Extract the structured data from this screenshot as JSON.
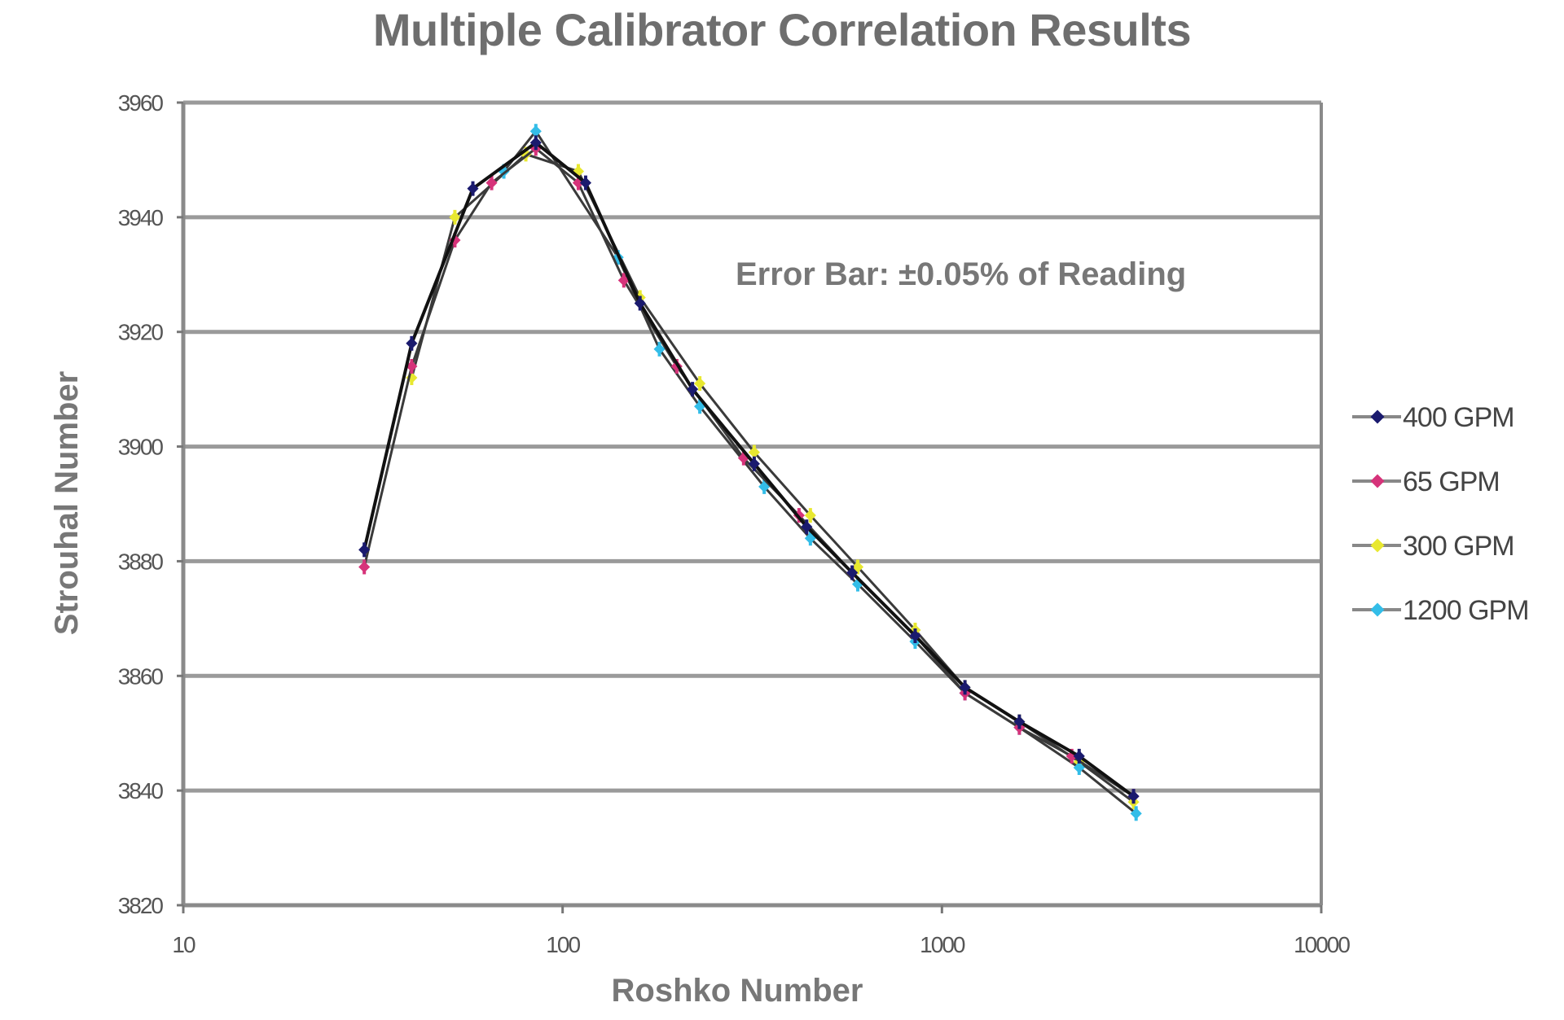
{
  "chart_data": {
    "type": "line",
    "title": "Multiple Calibrator Correlation Results",
    "xlabel": "Roshko Number",
    "ylabel": "Strouhal Number",
    "xscale": "log",
    "xlim": [
      10,
      10000
    ],
    "ylim": [
      3820,
      3960
    ],
    "x_ticks": [
      "10",
      "100",
      "1000",
      "10000"
    ],
    "y_ticks": [
      "3960",
      "3940",
      "3920",
      "3900",
      "3880",
      "3860",
      "3840",
      "3820"
    ],
    "grid": "horizontal",
    "legend_position": "right",
    "annotation": "Error Bar: ±0.05% of Reading",
    "series": [
      {
        "name": "400 GPM",
        "color": "#1a1a6e",
        "marker": "diamond",
        "points": [
          [
            30,
            3882
          ],
          [
            40,
            3918
          ],
          [
            58,
            3945
          ],
          [
            85,
            3953
          ],
          [
            115,
            3946
          ],
          [
            160,
            3925
          ],
          [
            220,
            3910
          ],
          [
            320,
            3897
          ],
          [
            440,
            3886
          ],
          [
            580,
            3878
          ],
          [
            850,
            3867
          ],
          [
            1150,
            3858
          ],
          [
            1600,
            3852
          ],
          [
            2300,
            3846
          ],
          [
            3200,
            3839
          ]
        ]
      },
      {
        "name": "65 GPM",
        "color": "#d6337a",
        "marker": "square",
        "points": [
          [
            30,
            3879
          ],
          [
            40,
            3914
          ],
          [
            52,
            3936
          ],
          [
            65,
            3946
          ],
          [
            85,
            3952
          ],
          [
            110,
            3946
          ],
          [
            145,
            3929
          ],
          [
            200,
            3914
          ],
          [
            300,
            3898
          ],
          [
            420,
            3888
          ],
          [
            580,
            3878
          ],
          [
            850,
            3867
          ],
          [
            1150,
            3857
          ],
          [
            1600,
            3851
          ],
          [
            2200,
            3846
          ],
          [
            3200,
            3839
          ]
        ]
      },
      {
        "name": "300 GPM",
        "color": "#e8e830",
        "marker": "triangle",
        "points": [
          [
            40,
            3912
          ],
          [
            52,
            3940
          ],
          [
            80,
            3951
          ],
          [
            110,
            3948
          ],
          [
            160,
            3926
          ],
          [
            230,
            3911
          ],
          [
            320,
            3899
          ],
          [
            450,
            3888
          ],
          [
            600,
            3879
          ],
          [
            850,
            3868
          ],
          [
            1150,
            3858
          ],
          [
            1600,
            3852
          ],
          [
            2300,
            3845
          ],
          [
            3200,
            3838
          ]
        ]
      },
      {
        "name": "1200 GPM",
        "color": "#33bde8",
        "marker": "x",
        "points": [
          [
            70,
            3948
          ],
          [
            85,
            3955
          ],
          [
            140,
            3933
          ],
          [
            180,
            3917
          ],
          [
            230,
            3907
          ],
          [
            340,
            3893
          ],
          [
            450,
            3884
          ],
          [
            600,
            3876
          ],
          [
            850,
            3866
          ],
          [
            1150,
            3857
          ],
          [
            1600,
            3851
          ],
          [
            2300,
            3844
          ],
          [
            3250,
            3836
          ]
        ]
      }
    ]
  },
  "legend": {
    "items": [
      {
        "label": "400 GPM",
        "color": "#1a1a6e"
      },
      {
        "label": "65 GPM",
        "color": "#d6337a"
      },
      {
        "label": "300 GPM",
        "color": "#e8e830"
      },
      {
        "label": "1200 GPM",
        "color": "#33bde8"
      }
    ]
  }
}
